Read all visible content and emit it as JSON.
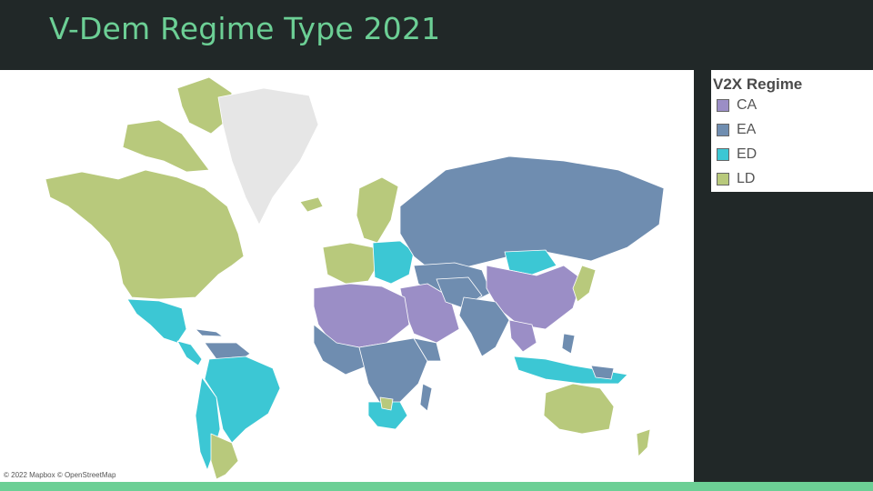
{
  "title": "V-Dem Regime Type 2021",
  "attribution": "© 2022 Mapbox © OpenStreetMap",
  "legend": {
    "title": "V2X Regime",
    "items": [
      {
        "code": "CA",
        "color": "#9b8ec6"
      },
      {
        "code": "EA",
        "color": "#6f8db0"
      },
      {
        "code": "ED",
        "color": "#3cc7d4"
      },
      {
        "code": "LD",
        "color": "#b8c97c"
      }
    ]
  },
  "colors": {
    "title": "#6ccf95",
    "background": "#212828",
    "accent_bar": "#6ccf95",
    "no_data": "#e6e6e6"
  }
}
